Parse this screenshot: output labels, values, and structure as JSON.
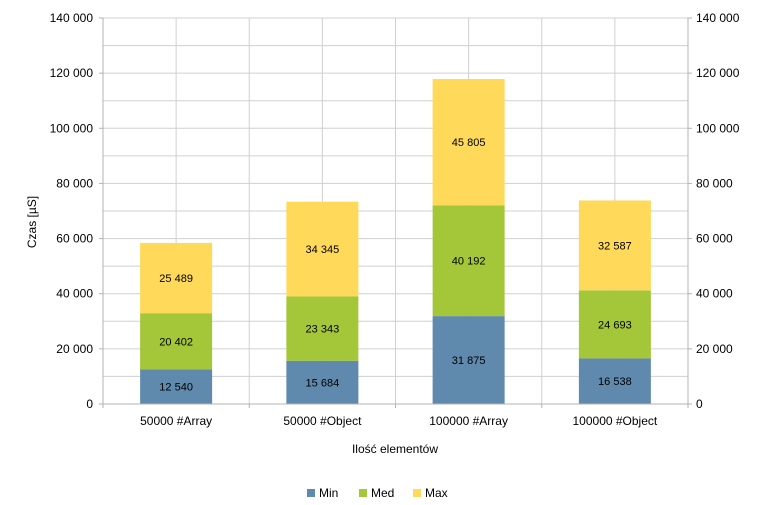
{
  "chart_data": {
    "type": "bar",
    "stacked": true,
    "categories": [
      "50000 #Array",
      "50000 #Object",
      "100000 #Array",
      "100000 #Object"
    ],
    "series": [
      {
        "name": "Min",
        "values": [
          12540,
          15684,
          31875,
          16538
        ],
        "labels": [
          "12 540",
          "15 684",
          "31 875",
          "16 538"
        ],
        "color": "#5f89ad"
      },
      {
        "name": "Med",
        "values": [
          20402,
          23343,
          40192,
          24693
        ],
        "labels": [
          "20 402",
          "23 343",
          "40 192",
          "24 693"
        ],
        "color": "#a4c639"
      },
      {
        "name": "Max",
        "values": [
          25489,
          34345,
          45805,
          32587
        ],
        "labels": [
          "25 489",
          "34 345",
          "45 805",
          "32 587"
        ],
        "color": "#ffd95a"
      }
    ],
    "ylim": [
      0,
      140000
    ],
    "yticks": [
      0,
      20000,
      40000,
      60000,
      80000,
      100000,
      120000,
      140000
    ],
    "ytick_labels": [
      "0",
      "20 000",
      "40 000",
      "60 000",
      "80 000",
      "100 000",
      "120 000",
      "140 000"
    ],
    "ylabel": "Czas [µS]",
    "xlabel": "Ilość elementów",
    "grid": true,
    "legend_position": "bottom",
    "colors": {
      "grid": "#d0d0d0",
      "axis": "#b3b3b3"
    }
  }
}
